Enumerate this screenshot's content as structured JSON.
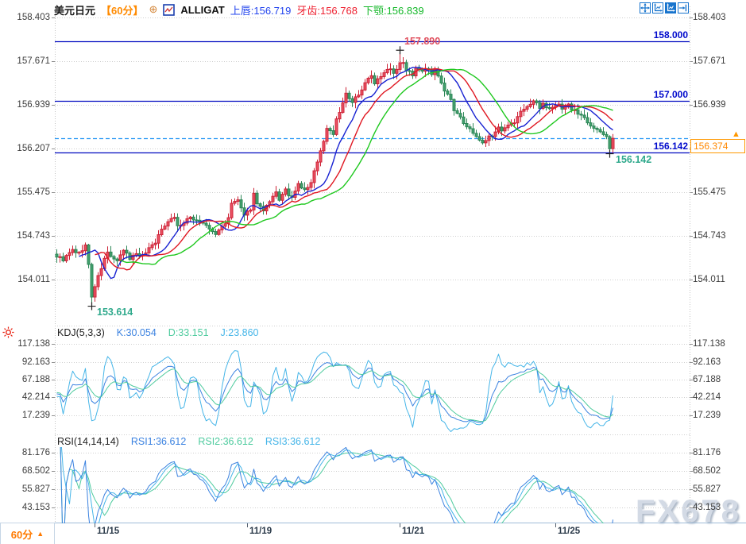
{
  "header": {
    "symbol": "美元日元",
    "timeframe": "【60分】",
    "collapse_glyph": "⊕",
    "indicator_name": "ALLIGAT",
    "lips_label": "上唇:156.719",
    "teeth_label": "牙齿:156.768",
    "jaw_label": "下颚:156.839"
  },
  "kdj_panel": {
    "title": "KDJ(5,3,3)",
    "k_label": "K:30.054",
    "d_label": "D:33.151",
    "j_label": "J:23.860"
  },
  "rsi_panel": {
    "title": "RSI(14,14,14)",
    "rsi1_label": "RSI1:36.612",
    "rsi2_label": "RSI2:36.612",
    "rsi3_label": "RSI3:36.612"
  },
  "bottom_bar": {
    "timeframe": "60分",
    "arrow": "▲"
  },
  "watermark": "FX678",
  "price_tag": {
    "label": "156.374",
    "arrow": "▲"
  },
  "level_tags": [
    "158.000",
    "157.000",
    "156.142"
  ],
  "annotations": {
    "high": "157.890",
    "low": "153.614",
    "recent_low": "156.142"
  },
  "chart_data": {
    "type": "candlestick",
    "symbol": "USD/JPY",
    "interval": "60min",
    "main_axis_ticks": [
      158.403,
      157.671,
      156.939,
      156.207,
      155.475,
      154.743,
      154.011
    ],
    "kdj_axis_ticks": [
      117.138,
      92.163,
      67.188,
      42.214,
      17.239
    ],
    "rsi_axis_ticks": [
      81.176,
      68.502,
      55.827,
      43.153
    ],
    "date_ticks": [
      {
        "label": "11/15",
        "index": 12
      },
      {
        "label": "11/19",
        "index": 60
      },
      {
        "label": "11/21",
        "index": 108
      },
      {
        "label": "11/25",
        "index": 157
      }
    ],
    "levels": [
      158.0,
      157.0,
      156.142
    ],
    "current_price": 156.374,
    "key_points": {
      "high": {
        "index": 108,
        "price": 157.89
      },
      "low": {
        "index": 11,
        "price": 153.614
      },
      "recent_low": {
        "index": 174,
        "price": 156.142
      },
      "last_close": 156.374
    },
    "candle_count": 176,
    "close_waypoints": [
      [
        0,
        154.4
      ],
      [
        2,
        154.34
      ],
      [
        5,
        154.5
      ],
      [
        7,
        154.44
      ],
      [
        9,
        154.58
      ],
      [
        10,
        154.25
      ],
      [
        11,
        153.72
      ],
      [
        12,
        153.9
      ],
      [
        13,
        154.05
      ],
      [
        14,
        154.2
      ],
      [
        15,
        154.35
      ],
      [
        16,
        154.46
      ],
      [
        17,
        154.4
      ],
      [
        19,
        154.3
      ],
      [
        21,
        154.5
      ],
      [
        23,
        154.36
      ],
      [
        25,
        154.45
      ],
      [
        27,
        154.4
      ],
      [
        29,
        154.54
      ],
      [
        31,
        154.64
      ],
      [
        33,
        154.84
      ],
      [
        35,
        155.0
      ],
      [
        37,
        155.06
      ],
      [
        38,
        154.9
      ],
      [
        40,
        154.95
      ],
      [
        42,
        155.05
      ],
      [
        44,
        155.0
      ],
      [
        46,
        154.95
      ],
      [
        48,
        154.85
      ],
      [
        50,
        154.76
      ],
      [
        52,
        154.9
      ],
      [
        54,
        155.02
      ],
      [
        55,
        155.28
      ],
      [
        57,
        155.34
      ],
      [
        59,
        155.06
      ],
      [
        61,
        155.2
      ],
      [
        62,
        155.44
      ],
      [
        63,
        155.3
      ],
      [
        65,
        155.15
      ],
      [
        67,
        155.3
      ],
      [
        69,
        155.46
      ],
      [
        70,
        155.35
      ],
      [
        72,
        155.5
      ],
      [
        74,
        155.36
      ],
      [
        76,
        155.6
      ],
      [
        78,
        155.5
      ],
      [
        80,
        155.62
      ],
      [
        82,
        156.0
      ],
      [
        84,
        156.32
      ],
      [
        85,
        156.55
      ],
      [
        87,
        156.45
      ],
      [
        88,
        156.7
      ],
      [
        90,
        156.95
      ],
      [
        91,
        157.12
      ],
      [
        93,
        156.95
      ],
      [
        94,
        157.05
      ],
      [
        96,
        157.2
      ],
      [
        97,
        157.3
      ],
      [
        99,
        157.44
      ],
      [
        100,
        157.3
      ],
      [
        102,
        157.4
      ],
      [
        103,
        157.5
      ],
      [
        105,
        157.56
      ],
      [
        106,
        157.48
      ],
      [
        108,
        157.62
      ],
      [
        109,
        157.66
      ],
      [
        110,
        157.52
      ],
      [
        112,
        157.44
      ],
      [
        113,
        157.54
      ],
      [
        115,
        157.48
      ],
      [
        116,
        157.55
      ],
      [
        118,
        157.44
      ],
      [
        119,
        157.5
      ],
      [
        121,
        157.3
      ],
      [
        122,
        157.18
      ],
      [
        124,
        157.0
      ],
      [
        125,
        156.86
      ],
      [
        127,
        156.74
      ],
      [
        128,
        156.6
      ],
      [
        130,
        156.54
      ],
      [
        131,
        156.44
      ],
      [
        133,
        156.34
      ],
      [
        134,
        156.28
      ],
      [
        136,
        156.44
      ],
      [
        137,
        156.38
      ],
      [
        139,
        156.54
      ],
      [
        140,
        156.48
      ],
      [
        142,
        156.58
      ],
      [
        144,
        156.64
      ],
      [
        145,
        156.74
      ],
      [
        147,
        156.88
      ],
      [
        149,
        156.94
      ],
      [
        150,
        157.0
      ],
      [
        152,
        156.9
      ],
      [
        153,
        156.96
      ],
      [
        155,
        156.86
      ],
      [
        156,
        156.9
      ],
      [
        158,
        156.94
      ],
      [
        159,
        156.88
      ],
      [
        161,
        156.94
      ],
      [
        162,
        156.86
      ],
      [
        164,
        156.8
      ],
      [
        165,
        156.76
      ],
      [
        167,
        156.66
      ],
      [
        168,
        156.6
      ],
      [
        170,
        156.52
      ],
      [
        171,
        156.46
      ],
      [
        173,
        156.42
      ],
      [
        174,
        156.2
      ],
      [
        175,
        156.374
      ]
    ],
    "alligator": {
      "lips": {
        "period": 5,
        "shift": 3,
        "value": 156.719,
        "color": "#1822d2"
      },
      "teeth": {
        "period": 8,
        "shift": 5,
        "value": 156.768,
        "color": "#e01822"
      },
      "jaw": {
        "period": 13,
        "shift": 8,
        "value": 156.839,
        "color": "#1ec81e"
      }
    },
    "kdj": {
      "params": [
        5,
        3,
        3
      ],
      "k": 30.054,
      "d": 33.151,
      "j": 23.86
    },
    "rsi": {
      "params": [
        14,
        14,
        14
      ],
      "rsi1": 36.612,
      "rsi2": 36.612,
      "rsi3": 36.612
    },
    "colors": {
      "up_fill": "#ea5062",
      "up_border": "#cd2438",
      "down_fill": "#43a06e",
      "down_border": "#2d8757",
      "level_line": "#0009c0",
      "price_line": "#2e9bf5",
      "k": "#3b82e0",
      "d": "#4ecb9e",
      "j": "#45b5e8",
      "grid": "#cfcfcf",
      "marker": "#222222"
    }
  }
}
